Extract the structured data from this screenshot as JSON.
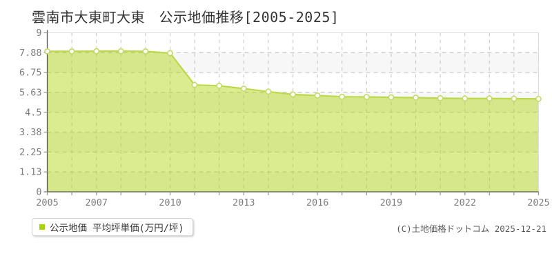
{
  "title": "雲南市大東町大東　公示地価推移[2005-2025]",
  "legend": {
    "label": "公示地価 平均坪単価(万円/坪)",
    "swatch_color": "#aad400"
  },
  "copyright": "(C)土地価格ドットコム 2025-12-21",
  "chart_data": {
    "type": "area",
    "title": "雲南市大東町大東 公示地価推移[2005-2025]",
    "xlabel": "",
    "ylabel": "公示地価 平均坪単価(万円/坪)",
    "x": [
      2005,
      2006,
      2007,
      2008,
      2009,
      2010,
      2011,
      2012,
      2013,
      2014,
      2015,
      2016,
      2017,
      2018,
      2019,
      2020,
      2021,
      2022,
      2023,
      2024,
      2025
    ],
    "series": [
      {
        "name": "公示地価 平均坪単価(万円/坪)",
        "values": [
          7.95,
          7.95,
          7.96,
          7.96,
          7.95,
          7.85,
          6.05,
          6.0,
          5.84,
          5.67,
          5.51,
          5.45,
          5.38,
          5.37,
          5.35,
          5.33,
          5.3,
          5.28,
          5.28,
          5.27,
          5.26
        ]
      }
    ],
    "ylim": [
      0,
      9
    ],
    "yticks": {
      "values": [
        0,
        1.125,
        2.25,
        3.375,
        4.5,
        5.625,
        6.75,
        7.875,
        9
      ],
      "labels": [
        "0",
        "1.13",
        "2.25",
        "3.38",
        "4.5",
        "5.63",
        "6.75",
        "7.88",
        "9"
      ]
    },
    "xtick_labels": [
      "2005",
      "2007",
      "2010",
      "2013",
      "2016",
      "2019",
      "2022",
      "2025"
    ],
    "grid": true,
    "legend_position": "bottom-left",
    "colors": {
      "line": "#bcd94a",
      "fill": "rgba(170,212,0,0.44)",
      "marker_fill": "#ffffff",
      "marker_stroke": "#c4d966",
      "grid": "#cccccc",
      "axis": "#555555",
      "border": "#dddddd",
      "band": "#f7f7f7",
      "tick": "#999999",
      "tick_label": "#7d7d7d"
    }
  }
}
